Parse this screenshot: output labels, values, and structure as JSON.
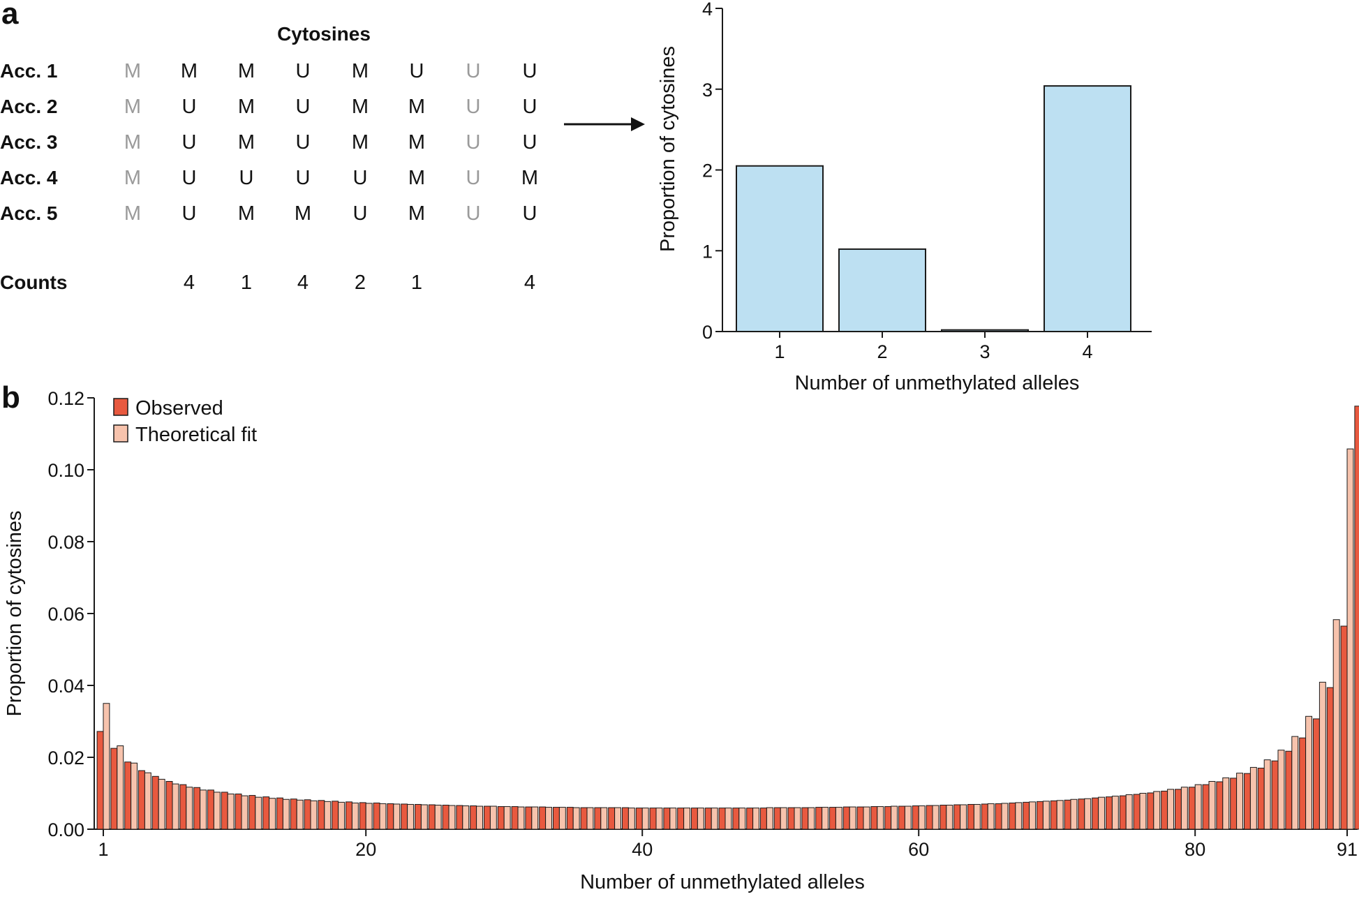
{
  "panel_a": {
    "label": "a",
    "table": {
      "title": "Cytosines",
      "rows": [
        {
          "label": "Acc. 1",
          "cells": [
            "M",
            "M",
            "M",
            "U",
            "M",
            "U",
            "U",
            "U"
          ]
        },
        {
          "label": "Acc. 2",
          "cells": [
            "M",
            "U",
            "M",
            "U",
            "M",
            "M",
            "U",
            "U"
          ]
        },
        {
          "label": "Acc. 3",
          "cells": [
            "M",
            "U",
            "M",
            "U",
            "M",
            "M",
            "U",
            "U"
          ]
        },
        {
          "label": "Acc. 4",
          "cells": [
            "M",
            "U",
            "U",
            "U",
            "U",
            "M",
            "U",
            "M"
          ]
        },
        {
          "label": "Acc. 5",
          "cells": [
            "M",
            "U",
            "M",
            "M",
            "U",
            "M",
            "U",
            "U"
          ]
        }
      ],
      "gray_columns": [
        0,
        6
      ],
      "counts_label": "Counts",
      "counts": [
        "",
        "4",
        "1",
        "4",
        "2",
        "1",
        "",
        "4"
      ]
    },
    "arrow": "right-arrow"
  },
  "panel_b": {
    "label": "b"
  },
  "colors": {
    "bar_a": "#bde0f2",
    "observed": "#e8593f",
    "theoretical": "#f7c3ad",
    "stroke": "#1a1a1a"
  },
  "chart_data": [
    {
      "type": "bar",
      "title": "",
      "xlabel": "Number of unmethylated alleles",
      "ylabel": "Proportion of cytosines",
      "categories": [
        "1",
        "2",
        "3",
        "4"
      ],
      "values": [
        2.05,
        1.02,
        0.02,
        3.04
      ],
      "ylim": [
        0,
        4
      ],
      "yticks": [
        "0",
        "1",
        "2",
        "3",
        "4"
      ]
    },
    {
      "type": "bar",
      "title": "",
      "xlabel": "Number of unmethylated alleles",
      "ylabel": "Proportion of cytosines",
      "xlim": [
        1,
        91
      ],
      "ylim": [
        0,
        0.12
      ],
      "xticks": [
        "1",
        "20",
        "40",
        "60",
        "80",
        "91"
      ],
      "yticks": [
        "0.00",
        "0.02",
        "0.04",
        "0.06",
        "0.08",
        "0.10",
        "0.12"
      ],
      "legend_position": "top-left",
      "series": [
        {
          "name": "Observed",
          "values": [
            0.0272,
            0.0225,
            0.0187,
            0.0163,
            0.0147,
            0.0133,
            0.0124,
            0.0116,
            0.0109,
            0.0103,
            0.0098,
            0.0094,
            0.009,
            0.0087,
            0.0084,
            0.0082,
            0.008,
            0.0078,
            0.0076,
            0.0074,
            0.0073,
            0.0071,
            0.007,
            0.0069,
            0.0068,
            0.0067,
            0.0066,
            0.0065,
            0.0064,
            0.0063,
            0.0063,
            0.0062,
            0.0062,
            0.0061,
            0.0061,
            0.006,
            0.006,
            0.006,
            0.006,
            0.0059,
            0.0059,
            0.0059,
            0.0059,
            0.0059,
            0.0059,
            0.0059,
            0.0059,
            0.0059,
            0.0059,
            0.006,
            0.006,
            0.006,
            0.0061,
            0.0061,
            0.0062,
            0.0062,
            0.0063,
            0.0063,
            0.0064,
            0.0065,
            0.0066,
            0.0067,
            0.0068,
            0.0069,
            0.007,
            0.0071,
            0.0073,
            0.0075,
            0.0077,
            0.0079,
            0.0081,
            0.0084,
            0.0087,
            0.009,
            0.0093,
            0.0097,
            0.0101,
            0.0106,
            0.0111,
            0.0117,
            0.0124,
            0.0132,
            0.0142,
            0.0155,
            0.017,
            0.019,
            0.0217,
            0.0254,
            0.0307,
            0.0394,
            0.0565,
            0.1177
          ]
        },
        {
          "name": "Theoretical fit",
          "values": [
            0.035,
            0.0232,
            0.0184,
            0.0157,
            0.0139,
            0.0126,
            0.0117,
            0.0109,
            0.0103,
            0.0098,
            0.0093,
            0.0089,
            0.0086,
            0.0083,
            0.0081,
            0.0079,
            0.0077,
            0.0075,
            0.0073,
            0.0072,
            0.0071,
            0.007,
            0.0069,
            0.0068,
            0.0067,
            0.0066,
            0.0065,
            0.0064,
            0.0064,
            0.0063,
            0.0062,
            0.0062,
            0.0061,
            0.0061,
            0.006,
            0.006,
            0.006,
            0.006,
            0.0059,
            0.0059,
            0.0059,
            0.0059,
            0.0059,
            0.0059,
            0.0059,
            0.0059,
            0.0059,
            0.0059,
            0.006,
            0.006,
            0.006,
            0.006,
            0.0061,
            0.0061,
            0.0062,
            0.0062,
            0.0063,
            0.0064,
            0.0064,
            0.0065,
            0.0066,
            0.0067,
            0.0068,
            0.0069,
            0.0071,
            0.0072,
            0.0074,
            0.0076,
            0.0078,
            0.008,
            0.0083,
            0.0085,
            0.0089,
            0.0092,
            0.0096,
            0.01,
            0.0105,
            0.0111,
            0.0117,
            0.0124,
            0.0133,
            0.0143,
            0.0156,
            0.0172,
            0.0193,
            0.022,
            0.0258,
            0.0314,
            0.0409,
            0.0583,
            0.1058
          ]
        }
      ]
    }
  ]
}
